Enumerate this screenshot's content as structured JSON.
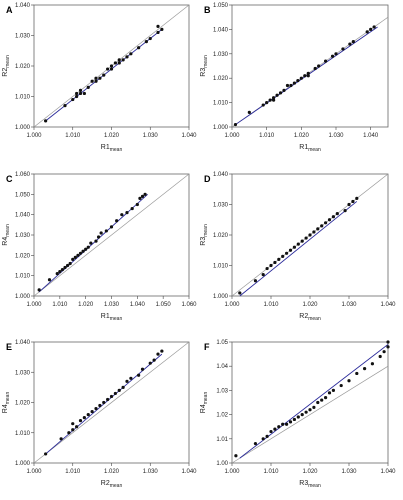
{
  "chart_data": [
    {
      "type": "scatter",
      "panel": "A",
      "xlabel": "R1",
      "ylabel": "R2",
      "sub": "mean",
      "xlim": [
        1.0,
        1.04
      ],
      "ylim": [
        1.0,
        1.04
      ],
      "xticks": [
        "1.000",
        "1.010",
        "1.020",
        "1.030",
        "1.040"
      ],
      "yticks": [
        "1.000",
        "1.010",
        "1.020",
        "1.030",
        "1.040"
      ],
      "fit": [
        [
          1.003,
          1.002
        ],
        [
          1.033,
          1.032
        ]
      ],
      "points": [
        [
          1.003,
          1.002
        ],
        [
          1.008,
          1.007
        ],
        [
          1.01,
          1.009
        ],
        [
          1.011,
          1.01
        ],
        [
          1.011,
          1.011
        ],
        [
          1.012,
          1.011
        ],
        [
          1.012,
          1.012
        ],
        [
          1.013,
          1.011
        ],
        [
          1.014,
          1.013
        ],
        [
          1.015,
          1.015
        ],
        [
          1.016,
          1.015
        ],
        [
          1.016,
          1.016
        ],
        [
          1.017,
          1.016
        ],
        [
          1.018,
          1.017
        ],
        [
          1.019,
          1.019
        ],
        [
          1.02,
          1.019
        ],
        [
          1.02,
          1.02
        ],
        [
          1.021,
          1.021
        ],
        [
          1.022,
          1.021
        ],
        [
          1.022,
          1.022
        ],
        [
          1.023,
          1.022
        ],
        [
          1.024,
          1.023
        ],
        [
          1.025,
          1.024
        ],
        [
          1.027,
          1.026
        ],
        [
          1.029,
          1.028
        ],
        [
          1.03,
          1.029
        ],
        [
          1.032,
          1.031
        ],
        [
          1.032,
          1.033
        ],
        [
          1.033,
          1.032
        ]
      ]
    },
    {
      "type": "scatter",
      "panel": "B",
      "xlabel": "R1",
      "ylabel": "R3",
      "sub": "mean",
      "xlim": [
        1.0,
        1.045
      ],
      "ylim": [
        1.0,
        1.05
      ],
      "xticks": [
        "1.000",
        "1.010",
        "1.020",
        "1.030",
        "1.040"
      ],
      "yticks": [
        "1.000",
        "1.010",
        "1.020",
        "1.030",
        "1.040",
        "1.050"
      ],
      "fit": [
        [
          1.001,
          1.001
        ],
        [
          1.042,
          1.041
        ]
      ],
      "points": [
        [
          1.001,
          1.001
        ],
        [
          1.005,
          1.006
        ],
        [
          1.009,
          1.009
        ],
        [
          1.01,
          1.01
        ],
        [
          1.011,
          1.011
        ],
        [
          1.012,
          1.011
        ],
        [
          1.012,
          1.012
        ],
        [
          1.013,
          1.013
        ],
        [
          1.014,
          1.014
        ],
        [
          1.015,
          1.015
        ],
        [
          1.016,
          1.017
        ],
        [
          1.017,
          1.017
        ],
        [
          1.018,
          1.018
        ],
        [
          1.019,
          1.019
        ],
        [
          1.02,
          1.02
        ],
        [
          1.021,
          1.021
        ],
        [
          1.022,
          1.021
        ],
        [
          1.022,
          1.022
        ],
        [
          1.024,
          1.024
        ],
        [
          1.025,
          1.025
        ],
        [
          1.027,
          1.027
        ],
        [
          1.029,
          1.029
        ],
        [
          1.03,
          1.03
        ],
        [
          1.032,
          1.032
        ],
        [
          1.034,
          1.034
        ],
        [
          1.035,
          1.035
        ],
        [
          1.039,
          1.039
        ],
        [
          1.04,
          1.04
        ],
        [
          1.041,
          1.041
        ]
      ]
    },
    {
      "type": "scatter",
      "panel": "C",
      "xlabel": "R1",
      "ylabel": "R4",
      "sub": "mean",
      "xlim": [
        1.0,
        1.06
      ],
      "ylim": [
        1.0,
        1.06
      ],
      "xticks": [
        "1.000",
        "1.010",
        "1.020",
        "1.030",
        "1.040",
        "1.050",
        "1.060"
      ],
      "yticks": [
        "1.000",
        "1.010",
        "1.020",
        "1.030",
        "1.040",
        "1.050",
        "1.060"
      ],
      "fit": [
        [
          1.002,
          1.002
        ],
        [
          1.044,
          1.05
        ]
      ],
      "points": [
        [
          1.002,
          1.003
        ],
        [
          1.006,
          1.008
        ],
        [
          1.009,
          1.011
        ],
        [
          1.01,
          1.012
        ],
        [
          1.011,
          1.013
        ],
        [
          1.012,
          1.014
        ],
        [
          1.013,
          1.015
        ],
        [
          1.014,
          1.016
        ],
        [
          1.015,
          1.018
        ],
        [
          1.016,
          1.019
        ],
        [
          1.017,
          1.02
        ],
        [
          1.018,
          1.021
        ],
        [
          1.019,
          1.022
        ],
        [
          1.02,
          1.023
        ],
        [
          1.021,
          1.024
        ],
        [
          1.022,
          1.026
        ],
        [
          1.024,
          1.027
        ],
        [
          1.025,
          1.029
        ],
        [
          1.026,
          1.031
        ],
        [
          1.028,
          1.032
        ],
        [
          1.03,
          1.034
        ],
        [
          1.032,
          1.037
        ],
        [
          1.034,
          1.04
        ],
        [
          1.036,
          1.041
        ],
        [
          1.038,
          1.043
        ],
        [
          1.04,
          1.045
        ],
        [
          1.041,
          1.048
        ],
        [
          1.042,
          1.049
        ],
        [
          1.043,
          1.05
        ]
      ]
    },
    {
      "type": "scatter",
      "panel": "D",
      "xlabel": "R2",
      "ylabel": "R3",
      "sub": "mean",
      "xlim": [
        1.0,
        1.04
      ],
      "ylim": [
        1.0,
        1.04
      ],
      "xticks": [
        "1.000",
        "1.010",
        "1.020",
        "1.030",
        "1.040"
      ],
      "yticks": [
        "1.000",
        "1.010",
        "1.020",
        "1.030",
        "1.040"
      ],
      "fit": [
        [
          1.002,
          1.0
        ],
        [
          1.032,
          1.031
        ]
      ],
      "points": [
        [
          1.002,
          1.001
        ],
        [
          1.006,
          1.005
        ],
        [
          1.008,
          1.007
        ],
        [
          1.009,
          1.009
        ],
        [
          1.01,
          1.01
        ],
        [
          1.011,
          1.011
        ],
        [
          1.012,
          1.012
        ],
        [
          1.013,
          1.013
        ],
        [
          1.014,
          1.014
        ],
        [
          1.015,
          1.015
        ],
        [
          1.016,
          1.016
        ],
        [
          1.017,
          1.017
        ],
        [
          1.018,
          1.018
        ],
        [
          1.019,
          1.019
        ],
        [
          1.02,
          1.02
        ],
        [
          1.021,
          1.021
        ],
        [
          1.022,
          1.022
        ],
        [
          1.023,
          1.023
        ],
        [
          1.024,
          1.024
        ],
        [
          1.025,
          1.025
        ],
        [
          1.026,
          1.026
        ],
        [
          1.027,
          1.027
        ],
        [
          1.029,
          1.028
        ],
        [
          1.03,
          1.03
        ],
        [
          1.031,
          1.031
        ],
        [
          1.032,
          1.032
        ]
      ]
    },
    {
      "type": "scatter",
      "panel": "E",
      "xlabel": "R2",
      "ylabel": "R4",
      "sub": "mean",
      "xlim": [
        1.0,
        1.04
      ],
      "ylim": [
        1.0,
        1.04
      ],
      "xticks": [
        "1.000",
        "1.010",
        "1.020",
        "1.030",
        "1.040"
      ],
      "yticks": [
        "1.000",
        "1.010",
        "1.020",
        "1.030",
        "1.040"
      ],
      "fit": [
        [
          1.003,
          1.003
        ],
        [
          1.033,
          1.036
        ]
      ],
      "points": [
        [
          1.003,
          1.003
        ],
        [
          1.007,
          1.008
        ],
        [
          1.009,
          1.01
        ],
        [
          1.01,
          1.011
        ],
        [
          1.01,
          1.013
        ],
        [
          1.011,
          1.012
        ],
        [
          1.012,
          1.014
        ],
        [
          1.013,
          1.015
        ],
        [
          1.014,
          1.016
        ],
        [
          1.015,
          1.017
        ],
        [
          1.016,
          1.018
        ],
        [
          1.017,
          1.019
        ],
        [
          1.018,
          1.02
        ],
        [
          1.019,
          1.021
        ],
        [
          1.02,
          1.022
        ],
        [
          1.021,
          1.023
        ],
        [
          1.022,
          1.024
        ],
        [
          1.023,
          1.025
        ],
        [
          1.024,
          1.027
        ],
        [
          1.025,
          1.028
        ],
        [
          1.027,
          1.029
        ],
        [
          1.028,
          1.031
        ],
        [
          1.03,
          1.033
        ],
        [
          1.031,
          1.034
        ],
        [
          1.032,
          1.036
        ],
        [
          1.033,
          1.037
        ]
      ]
    },
    {
      "type": "scatter",
      "panel": "F",
      "xlabel": "R3",
      "ylabel": "R4",
      "sub": "mean",
      "xlim": [
        1.0,
        1.04
      ],
      "ylim": [
        1.0,
        1.05
      ],
      "xticks": [
        "1.000",
        "1.010",
        "1.020",
        "1.030",
        "1.040"
      ],
      "yticks": [
        "1.00",
        "1.01",
        "1.02",
        "1.03",
        "1.04",
        "1.05"
      ],
      "fit": [
        [
          1.002,
          1.002
        ],
        [
          1.04,
          1.049
        ]
      ],
      "points": [
        [
          1.001,
          1.003
        ],
        [
          1.006,
          1.008
        ],
        [
          1.008,
          1.01
        ],
        [
          1.009,
          1.011
        ],
        [
          1.01,
          1.013
        ],
        [
          1.011,
          1.014
        ],
        [
          1.012,
          1.015
        ],
        [
          1.013,
          1.016
        ],
        [
          1.014,
          1.016
        ],
        [
          1.015,
          1.017
        ],
        [
          1.016,
          1.018
        ],
        [
          1.017,
          1.019
        ],
        [
          1.018,
          1.02
        ],
        [
          1.019,
          1.021
        ],
        [
          1.02,
          1.022
        ],
        [
          1.021,
          1.023
        ],
        [
          1.022,
          1.025
        ],
        [
          1.023,
          1.026
        ],
        [
          1.024,
          1.027
        ],
        [
          1.025,
          1.029
        ],
        [
          1.026,
          1.03
        ],
        [
          1.028,
          1.032
        ],
        [
          1.03,
          1.034
        ],
        [
          1.032,
          1.037
        ],
        [
          1.034,
          1.039
        ],
        [
          1.036,
          1.041
        ],
        [
          1.038,
          1.044
        ],
        [
          1.039,
          1.046
        ],
        [
          1.04,
          1.048
        ],
        [
          1.04,
          1.05
        ]
      ]
    }
  ]
}
